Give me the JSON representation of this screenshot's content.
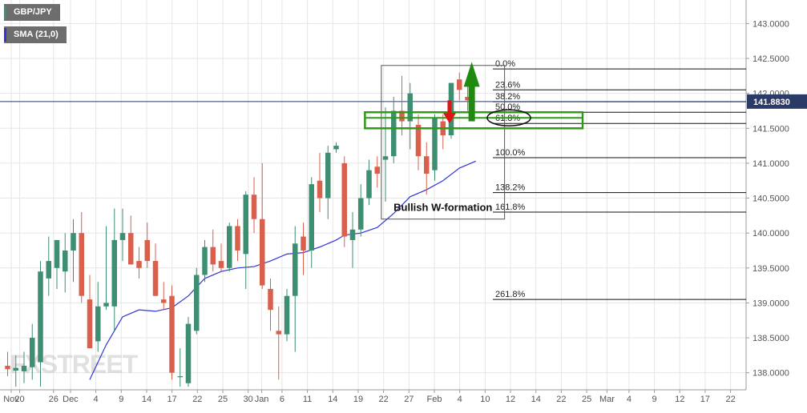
{
  "chart_data": {
    "type": "candlestick",
    "instrument": "GBP/JPY",
    "indicator": "SMA (21,0)",
    "current_price": "141.8830",
    "watermark": "FXSTREET",
    "y_axis": {
      "min": 137.75,
      "max": 143.25,
      "ticks": [
        "143.0000",
        "142.5000",
        "142.0000",
        "141.5000",
        "141.0000",
        "140.5000",
        "140.0000",
        "139.5000",
        "139.0000",
        "138.5000",
        "138.0000"
      ]
    },
    "x_axis": {
      "labels": [
        {
          "text": "Nov",
          "day": 0
        },
        {
          "text": "20",
          "day": 1
        },
        {
          "text": "26",
          "day": 5
        },
        {
          "text": "Dec",
          "day": 7
        },
        {
          "text": "4",
          "day": 10
        },
        {
          "text": "9",
          "day": 13
        },
        {
          "text": "14",
          "day": 16
        },
        {
          "text": "17",
          "day": 19
        },
        {
          "text": "22",
          "day": 22
        },
        {
          "text": "25",
          "day": 25
        },
        {
          "text": "30",
          "day": 28
        },
        {
          "text": "Jan",
          "day": 29.6
        },
        {
          "text": "6",
          "day": 32
        },
        {
          "text": "11",
          "day": 35
        },
        {
          "text": "14",
          "day": 38
        },
        {
          "text": "19",
          "day": 41
        },
        {
          "text": "22",
          "day": 44
        },
        {
          "text": "27",
          "day": 47
        },
        {
          "text": "Feb",
          "day": 50
        },
        {
          "text": "4",
          "day": 53
        },
        {
          "text": "10",
          "day": 56
        },
        {
          "text": "12",
          "day": 59
        },
        {
          "text": "14",
          "day": 62
        },
        {
          "text": "22",
          "day": 65
        },
        {
          "text": "25",
          "day": 68
        },
        {
          "text": "Mar",
          "day": 70.4
        },
        {
          "text": "4",
          "day": 73
        },
        {
          "text": "9",
          "day": 76
        },
        {
          "text": "12",
          "day": 79
        },
        {
          "text": "17",
          "day": 82
        },
        {
          "text": "22",
          "day": 85
        }
      ]
    },
    "colors": {
      "up": "#3e8e72",
      "down": "#d9604d",
      "sma": "#2f36d6",
      "grid": "#e6e6e6"
    },
    "candles": [
      {
        "o": 138.1,
        "h": 138.3,
        "l": 137.95,
        "c": 138.05
      },
      {
        "o": 138.03,
        "h": 138.25,
        "l": 137.8,
        "c": 138.07
      },
      {
        "o": 138.02,
        "h": 138.3,
        "l": 137.85,
        "c": 138.1
      },
      {
        "o": 138.08,
        "h": 138.7,
        "l": 137.9,
        "c": 138.5
      },
      {
        "o": 138.15,
        "h": 139.6,
        "l": 137.8,
        "c": 139.45
      },
      {
        "o": 139.35,
        "h": 139.95,
        "l": 139.1,
        "c": 139.6
      },
      {
        "o": 139.5,
        "h": 139.9,
        "l": 139.2,
        "c": 139.9
      },
      {
        "o": 139.45,
        "h": 140.0,
        "l": 139.15,
        "c": 139.75
      },
      {
        "o": 139.75,
        "h": 140.2,
        "l": 139.3,
        "c": 140.0
      },
      {
        "o": 140.0,
        "h": 140.3,
        "l": 139.0,
        "c": 139.1
      },
      {
        "o": 139.05,
        "h": 139.4,
        "l": 138.35,
        "c": 138.35
      },
      {
        "o": 138.45,
        "h": 139.3,
        "l": 138.3,
        "c": 138.95
      },
      {
        "o": 138.95,
        "h": 140.1,
        "l": 138.9,
        "c": 139.0
      },
      {
        "o": 138.95,
        "h": 140.35,
        "l": 138.6,
        "c": 139.9
      },
      {
        "o": 139.9,
        "h": 140.35,
        "l": 139.6,
        "c": 140.0
      },
      {
        "o": 140.0,
        "h": 140.25,
        "l": 139.55,
        "c": 139.55
      },
      {
        "o": 139.6,
        "h": 139.8,
        "l": 139.35,
        "c": 139.5
      },
      {
        "o": 139.9,
        "h": 140.15,
        "l": 139.5,
        "c": 139.6
      },
      {
        "o": 139.6,
        "h": 139.85,
        "l": 139.1,
        "c": 139.1
      },
      {
        "o": 139.05,
        "h": 139.3,
        "l": 138.9,
        "c": 139.0
      },
      {
        "o": 139.1,
        "h": 139.25,
        "l": 137.9,
        "c": 138.0
      },
      {
        "o": 137.95,
        "h": 138.35,
        "l": 137.8,
        "c": 137.95
      },
      {
        "o": 137.85,
        "h": 138.8,
        "l": 137.8,
        "c": 138.7
      },
      {
        "o": 138.6,
        "h": 139.5,
        "l": 138.55,
        "c": 139.4
      },
      {
        "o": 139.4,
        "h": 139.9,
        "l": 139.3,
        "c": 139.8
      },
      {
        "o": 139.8,
        "h": 140.05,
        "l": 139.45,
        "c": 139.55
      },
      {
        "o": 139.6,
        "h": 139.85,
        "l": 139.45,
        "c": 139.5
      },
      {
        "o": 139.5,
        "h": 140.15,
        "l": 139.45,
        "c": 140.1
      },
      {
        "o": 140.1,
        "h": 140.2,
        "l": 139.6,
        "c": 139.75
      },
      {
        "o": 139.7,
        "h": 140.6,
        "l": 139.2,
        "c": 140.55
      },
      {
        "o": 140.55,
        "h": 140.8,
        "l": 140.0,
        "c": 140.2
      },
      {
        "o": 140.2,
        "h": 141.0,
        "l": 139.2,
        "c": 139.25
      },
      {
        "o": 139.2,
        "h": 139.35,
        "l": 138.6,
        "c": 138.9
      },
      {
        "o": 138.6,
        "h": 138.95,
        "l": 137.9,
        "c": 138.55
      },
      {
        "o": 138.55,
        "h": 139.2,
        "l": 138.45,
        "c": 139.1
      },
      {
        "o": 139.1,
        "h": 140.1,
        "l": 138.3,
        "c": 139.85
      },
      {
        "o": 139.95,
        "h": 140.15,
        "l": 139.4,
        "c": 139.75
      },
      {
        "o": 139.75,
        "h": 140.8,
        "l": 139.5,
        "c": 140.7
      },
      {
        "o": 140.75,
        "h": 141.15,
        "l": 140.3,
        "c": 140.5
      },
      {
        "o": 140.5,
        "h": 141.25,
        "l": 140.2,
        "c": 141.15
      },
      {
        "o": 141.2,
        "h": 141.3,
        "l": 141.15,
        "c": 141.25
      },
      {
        "o": 141.0,
        "h": 141.1,
        "l": 139.8,
        "c": 139.95
      },
      {
        "o": 139.9,
        "h": 140.3,
        "l": 139.5,
        "c": 140.05
      },
      {
        "o": 140.05,
        "h": 140.7,
        "l": 139.95,
        "c": 140.5
      },
      {
        "o": 140.5,
        "h": 141.05,
        "l": 140.4,
        "c": 140.9
      },
      {
        "o": 140.95,
        "h": 141.1,
        "l": 140.65,
        "c": 140.85
      },
      {
        "o": 141.05,
        "h": 141.8,
        "l": 140.45,
        "c": 141.1
      },
      {
        "o": 141.1,
        "h": 141.95,
        "l": 141.0,
        "c": 141.75
      },
      {
        "o": 141.75,
        "h": 142.25,
        "l": 141.4,
        "c": 141.6
      },
      {
        "o": 141.6,
        "h": 142.15,
        "l": 141.2,
        "c": 142.0
      },
      {
        "o": 141.55,
        "h": 141.7,
        "l": 140.9,
        "c": 141.1
      },
      {
        "o": 141.1,
        "h": 141.3,
        "l": 140.55,
        "c": 140.85
      },
      {
        "o": 140.9,
        "h": 141.7,
        "l": 140.75,
        "c": 141.65
      },
      {
        "o": 141.6,
        "h": 141.7,
        "l": 141.2,
        "c": 141.4
      },
      {
        "o": 141.4,
        "h": 142.15,
        "l": 141.35,
        "c": 142.15
      },
      {
        "o": 142.2,
        "h": 142.3,
        "l": 141.9,
        "c": 142.05
      },
      {
        "o": 141.95,
        "h": 142.25,
        "l": 141.75,
        "c": 141.9
      }
    ],
    "sma": [
      {
        "i": 10,
        "v": 137.9
      },
      {
        "i": 12,
        "v": 138.4
      },
      {
        "i": 14,
        "v": 138.8
      },
      {
        "i": 16,
        "v": 138.9
      },
      {
        "i": 18,
        "v": 138.88
      },
      {
        "i": 20,
        "v": 138.93
      },
      {
        "i": 22,
        "v": 139.1
      },
      {
        "i": 24,
        "v": 139.35
      },
      {
        "i": 26,
        "v": 139.45
      },
      {
        "i": 28,
        "v": 139.5
      },
      {
        "i": 30,
        "v": 139.52
      },
      {
        "i": 32,
        "v": 139.6
      },
      {
        "i": 34,
        "v": 139.7
      },
      {
        "i": 36,
        "v": 139.72
      },
      {
        "i": 38,
        "v": 139.8
      },
      {
        "i": 40,
        "v": 139.9
      },
      {
        "i": 41,
        "v": 139.97
      },
      {
        "i": 43,
        "v": 140.0
      },
      {
        "i": 45,
        "v": 140.08
      },
      {
        "i": 47,
        "v": 140.28
      },
      {
        "i": 49,
        "v": 140.52
      },
      {
        "i": 51,
        "v": 140.62
      },
      {
        "i": 53,
        "v": 140.75
      },
      {
        "i": 55,
        "v": 140.93
      },
      {
        "i": 57,
        "v": 141.03
      }
    ],
    "fibonacci": [
      {
        "label": "0.0%",
        "price": 142.35
      },
      {
        "label": "23.6%",
        "price": 142.05
      },
      {
        "label": "38.2%",
        "price": 141.88
      },
      {
        "label": "50.0%",
        "price": 141.73
      },
      {
        "label": "61.8%",
        "price": 141.57
      },
      {
        "label": "100.0%",
        "price": 141.08
      },
      {
        "label": "138.2%",
        "price": 140.58
      },
      {
        "label": "161.8%",
        "price": 140.3
      },
      {
        "label": "261.8%",
        "price": 139.05
      }
    ],
    "annotations": {
      "box_label": "Bullish W-formation",
      "box": {
        "i0": 45.5,
        "i1": 60.5,
        "p0": 140.2,
        "p1": 142.4
      },
      "zone": {
        "i0": 43.5,
        "i1": 70.0,
        "p_top": 141.73,
        "p_bottom": 141.5
      },
      "ellipse_fib": "61.8%",
      "arrow_up": {
        "i": 56.5,
        "from": 141.6,
        "to": 142.45
      },
      "arrow_down": {
        "i": 53.8,
        "from": 141.9,
        "to": 141.57
      }
    }
  }
}
